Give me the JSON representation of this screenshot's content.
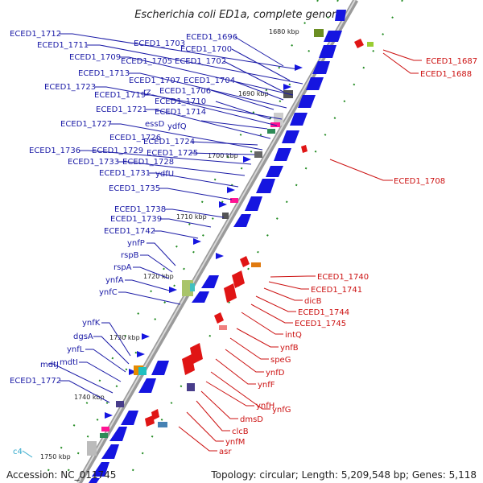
{
  "title": "Escherichia coli ED1a, complete genome",
  "footer": {
    "accession": "Accession: NC_011745",
    "topology": "Topology: circular; Length: 5,209,548 bp; Genes: 5,118"
  },
  "ticks": [
    "1680 kbp",
    "1690 kbp",
    "1700 kbp",
    "1710 kbp",
    "1720 kbp",
    "1730 kbp",
    "1740 kbp",
    "1750 kbp"
  ],
  "left_labels": [
    "ECED1_1712",
    "ECED1_1711",
    "ECED1_1709",
    "ECED1_1713",
    "ECED1_1723",
    "ECED1_1719",
    "ECED1_1721",
    "ECED1_1727",
    "ECED1_1736",
    "ECED1_1733",
    "ECED1_1731",
    "ECED1_1735",
    "ECED1_1738",
    "ECED1_1739",
    "ECED1_1742",
    "ynfP",
    "rspB",
    "rspA",
    "ynfA",
    "ynfC",
    "ynfK",
    "dgsA",
    "ynfL",
    "mdtI",
    "mdtJ",
    "ECED1_1772",
    "c4"
  ],
  "mid_labels": [
    "ECED1_1703",
    "ECED1_1705",
    "ECED1_1707",
    "rz",
    "ECED1_1719",
    "ECED1_1721",
    "essD",
    "ECED1_1726",
    "ECED1_1729",
    "ECED1_1728",
    "ydfU",
    "ECED1_1696",
    "ECED1_1700",
    "ECED1_1702",
    "ECED1_1704",
    "ECED1_1706",
    "ECED1_1710",
    "ECED1_1714",
    "ydfQ",
    "ECED1_1724",
    "ECED1_1725"
  ],
  "right_labels": [
    "ECED1_1687",
    "ECED1_1688",
    "ECED1_1708",
    "ECED1_1740",
    "ECED1_1741",
    "dicB",
    "ECED1_1744",
    "ECED1_1745",
    "intQ",
    "ynfB",
    "speG",
    "ynfD",
    "ynfF",
    "ynfH",
    "ynfG",
    "dmsD",
    "clcB",
    "ynfM",
    "asr"
  ],
  "colors": {
    "forward": "#1515e0",
    "reverse": "#e01515",
    "backbone": "#999999",
    "label_blue": "#1a1aa6",
    "label_red": "#cc1111"
  }
}
